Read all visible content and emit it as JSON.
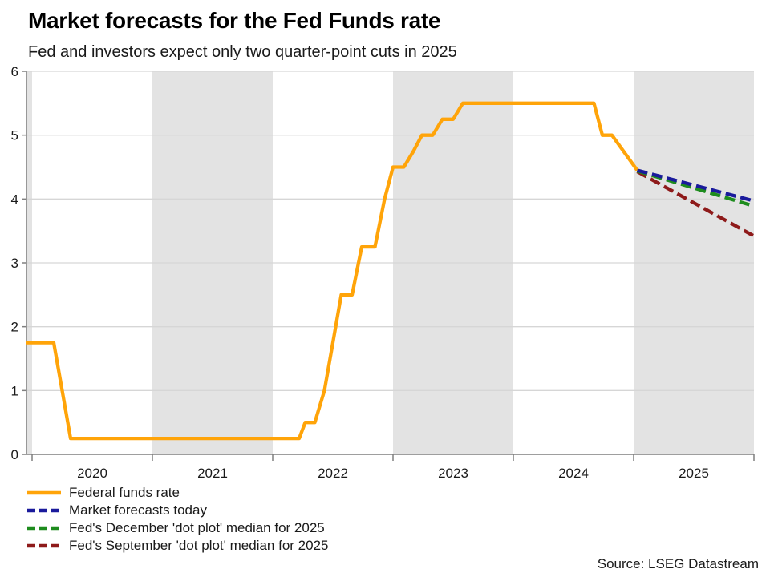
{
  "header": {
    "title": "Market forecasts for the Fed Funds rate",
    "subtitle": "Fed and investors expect only two quarter-point cuts in 2025"
  },
  "footer": {
    "source": "Source: LSEG Datastream"
  },
  "chart_data": {
    "type": "line",
    "title": "Market forecasts for the Fed Funds rate",
    "subtitle": "Fed and investors expect only two quarter-point cuts in 2025",
    "xlabel": "",
    "ylabel": "",
    "x_axis": {
      "range": [
        2019.953,
        2026.0
      ],
      "tick_years": [
        2020,
        2021,
        2022,
        2023,
        2024,
        2025,
        2026
      ],
      "tick_labels": [
        "2020",
        "2021",
        "2022",
        "2023",
        "2024",
        "2025"
      ]
    },
    "y_axis": {
      "range": [
        0,
        6
      ],
      "ticks": [
        0,
        1,
        2,
        3,
        4,
        5,
        6
      ],
      "tick_labels": [
        "0",
        "1",
        "2",
        "3",
        "4",
        "5",
        "6"
      ]
    },
    "grid": true,
    "shaded_years": [
      2019,
      2021,
      2023,
      2025
    ],
    "shade_color": "#e3e3e3",
    "grid_color": "#d6d6d6",
    "axis_color": "#7f7f7f",
    "legend_position": "bottom-left",
    "series": [
      {
        "name": "Federal funds rate",
        "color": "#FFA409",
        "style": "solid",
        "points": [
          [
            2019.953,
            1.75
          ],
          [
            2020.18,
            1.75
          ],
          [
            2020.32,
            0.25
          ],
          [
            2022.22,
            0.25
          ],
          [
            2022.27,
            0.5
          ],
          [
            2022.35,
            0.5
          ],
          [
            2022.43,
            1.0
          ],
          [
            2022.5,
            1.75
          ],
          [
            2022.57,
            2.5
          ],
          [
            2022.66,
            2.5
          ],
          [
            2022.74,
            3.25
          ],
          [
            2022.85,
            3.25
          ],
          [
            2022.93,
            4.0
          ],
          [
            2023.0,
            4.5
          ],
          [
            2023.09,
            4.5
          ],
          [
            2023.17,
            4.75
          ],
          [
            2023.24,
            5.0
          ],
          [
            2023.33,
            5.0
          ],
          [
            2023.41,
            5.25
          ],
          [
            2023.5,
            5.25
          ],
          [
            2023.58,
            5.5
          ],
          [
            2024.67,
            5.5
          ],
          [
            2024.74,
            5.0
          ],
          [
            2024.82,
            5.0
          ],
          [
            2025.03,
            4.45
          ]
        ]
      },
      {
        "name": "Market forecasts today",
        "color": "#1A1A9C",
        "style": "dashed",
        "points": [
          [
            2025.03,
            4.45
          ],
          [
            2026.0,
            3.97
          ]
        ]
      },
      {
        "name": "Fed's December 'dot plot' median for 2025",
        "color": "#1E8C1E",
        "style": "dashed",
        "points": [
          [
            2025.03,
            4.44
          ],
          [
            2026.0,
            3.89
          ]
        ]
      },
      {
        "name": "Fed's September 'dot plot' median for 2025",
        "color": "#8E1A1A",
        "style": "dashed",
        "points": [
          [
            2025.03,
            4.43
          ],
          [
            2026.0,
            3.42
          ]
        ]
      }
    ]
  }
}
